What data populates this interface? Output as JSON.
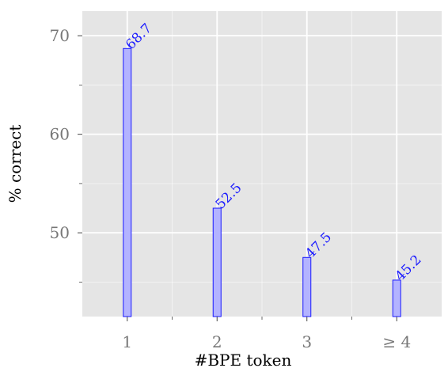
{
  "chart_data": {
    "type": "bar",
    "categories": [
      "1",
      "2",
      "3",
      "≥ 4"
    ],
    "values": [
      68.7,
      52.5,
      47.5,
      45.2
    ],
    "data_labels": [
      "68.7",
      "52.5",
      "47.5",
      "45.2"
    ],
    "title": "",
    "xlabel": "#BPE token",
    "ylabel": "% correct",
    "ylim": [
      41.5,
      72.5
    ],
    "yticks": [
      50,
      60,
      70
    ],
    "yticks_minor": [
      45,
      55,
      65
    ],
    "grid": true,
    "colors": {
      "panel": "#e5e5e5",
      "grid": "#ffffff",
      "bar_fill": "#b3b3ff",
      "bar_stroke": "#1a1aff",
      "label": "#1a1aff",
      "tick_text": "#777777"
    }
  }
}
